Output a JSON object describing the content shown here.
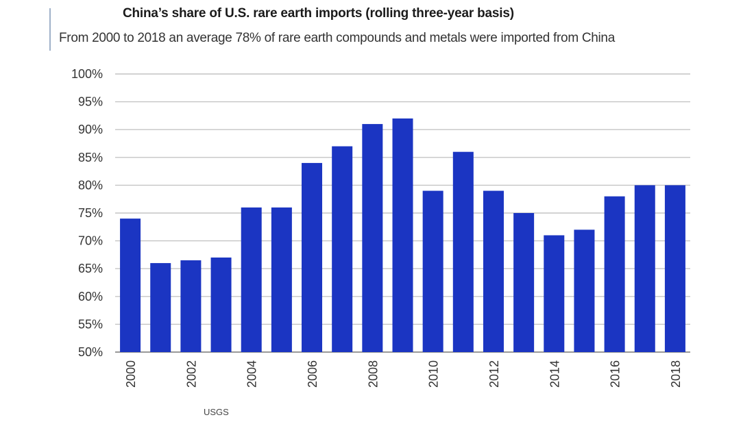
{
  "chart_data": {
    "type": "bar",
    "title": "China’s share of U.S. rare earth imports (rolling three-year basis)",
    "subtitle": "From 2000 to 2018 an average 78% of rare earth compounds and metals were imported from China",
    "xlabel": "",
    "ylabel": "",
    "ylim": [
      50,
      100
    ],
    "y_ticks": [
      "50%",
      "55%",
      "60%",
      "65%",
      "70%",
      "75%",
      "80%",
      "85%",
      "90%",
      "95%",
      "100%"
    ],
    "categories": [
      "2000",
      "2001",
      "2002",
      "2003",
      "2004",
      "2005",
      "2006",
      "2007",
      "2008",
      "2009",
      "2010",
      "2011",
      "2012",
      "2013",
      "2014",
      "2015",
      "2016",
      "2017",
      "2018"
    ],
    "x_tick_labels": [
      "2000",
      "2002",
      "2004",
      "2006",
      "2008",
      "2010",
      "2012",
      "2014",
      "2016",
      "2018"
    ],
    "values": [
      74,
      66,
      66.5,
      67,
      76,
      76,
      84,
      87,
      91,
      92,
      79,
      86,
      79,
      75,
      71,
      72,
      78,
      80,
      80
    ],
    "grid": true,
    "bar_color": "#1b35c2",
    "source": "USGS"
  }
}
